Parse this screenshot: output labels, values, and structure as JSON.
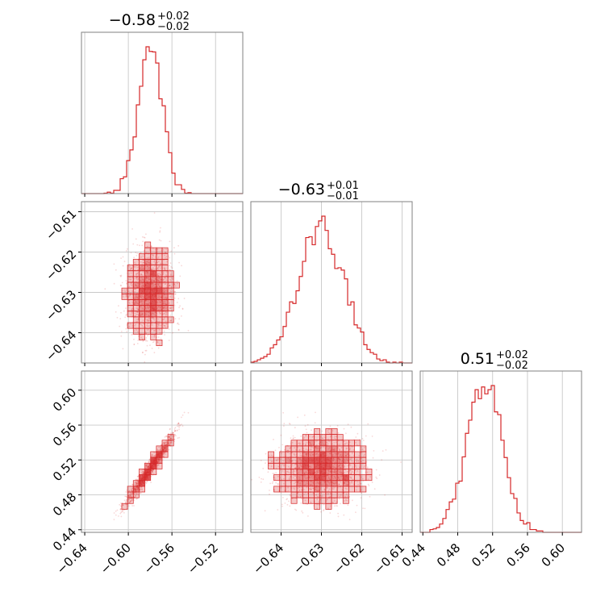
{
  "chart_data": {
    "type": "corner",
    "color": "#d62728",
    "parameters": [
      {
        "median": -0.58,
        "upper": 0.02,
        "lower": 0.02,
        "title_main": "−0.58",
        "title_upper": "+0.02",
        "title_lower": "−0.02",
        "range": [
          -0.643,
          -0.495
        ],
        "ticks": [
          -0.64,
          -0.6,
          -0.56,
          -0.52
        ],
        "tick_labels": [
          "−0.64",
          "−0.60",
          "−0.56",
          "−0.52"
        ],
        "std": 0.011
      },
      {
        "median": -0.63,
        "upper": 0.01,
        "lower": 0.01,
        "title_main": "−0.63",
        "title_upper": "+0.01",
        "title_lower": "−0.01",
        "range": [
          -0.6475,
          -0.6075
        ],
        "ticks": [
          -0.64,
          -0.63,
          -0.62,
          -0.61
        ],
        "tick_labels": [
          "−0.64",
          "−0.63",
          "−0.62",
          "−0.61"
        ],
        "std": 0.0055
      },
      {
        "median": 0.51,
        "upper": 0.02,
        "lower": 0.02,
        "title_main": "0.51",
        "title_upper": "+0.02",
        "title_lower": "−0.02",
        "range": [
          0.437,
          0.622
        ],
        "ticks": [
          0.44,
          0.48,
          0.52,
          0.56,
          0.6
        ],
        "tick_labels": [
          "0.44",
          "0.48",
          "0.52",
          "0.56",
          "0.60"
        ],
        "std": 0.02
      }
    ],
    "correlations": {
      "1-0": 0.05,
      "2-0": 0.97,
      "2-1": 0.05
    },
    "grid": true
  }
}
